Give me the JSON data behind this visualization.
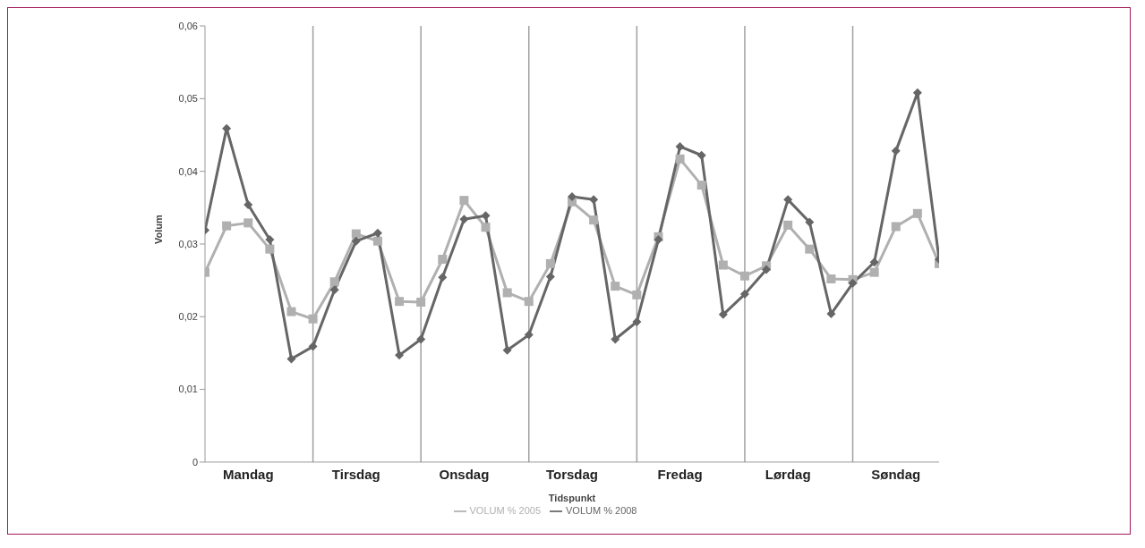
{
  "chart_data": {
    "type": "line",
    "xlabel": "Tidspunkt",
    "ylabel": "Volum",
    "categories": [
      null,
      null,
      "Mandag",
      null,
      null,
      null,
      null,
      "Tirsdag",
      null,
      null,
      null,
      null,
      "Onsdag",
      null,
      null,
      null,
      null,
      "Torsdag",
      null,
      null,
      null,
      null,
      "Fredag",
      null,
      null,
      null,
      null,
      "Lørdag",
      null,
      null,
      null,
      null,
      "Søndag",
      null,
      null
    ],
    "ylim": [
      0,
      0.06
    ],
    "yticks": [
      {
        "value": 0,
        "label": "0"
      },
      {
        "value": 0.01,
        "label": "0,01"
      },
      {
        "value": 0.02,
        "label": "0,02"
      },
      {
        "value": 0.03,
        "label": "0,03"
      },
      {
        "value": 0.04,
        "label": "0,04"
      },
      {
        "value": 0.05,
        "label": "0,05"
      },
      {
        "value": 0.06,
        "label": "0,06"
      }
    ],
    "grid": "x",
    "legend": "bottom",
    "line_style": "solid",
    "series": [
      {
        "name": "VOLUM % 2005",
        "color": "#b0b0b0",
        "marker": "square",
        "values": [
          0.0261,
          0.0325,
          0.0329,
          0.0293,
          0.0207,
          0.0197,
          0.0248,
          0.0314,
          0.0304,
          0.0221,
          0.022,
          0.0279,
          0.036,
          0.0323,
          0.0233,
          0.0221,
          0.0273,
          0.0358,
          0.0333,
          0.0242,
          0.023,
          0.031,
          0.0417,
          0.0381,
          0.0271,
          0.0256,
          0.027,
          0.0326,
          0.0293,
          0.0252,
          0.0251,
          0.0261,
          0.0324,
          0.0342,
          0.0273
        ]
      },
      {
        "name": "VOLUM % 2008",
        "color": "#666666",
        "marker": "diamond",
        "values": [
          0.0319,
          0.0459,
          0.0354,
          0.0306,
          0.0142,
          0.0159,
          0.0237,
          0.0304,
          0.0315,
          0.0147,
          0.0169,
          0.0254,
          0.0334,
          0.0339,
          0.0154,
          0.0175,
          0.0255,
          0.0365,
          0.0361,
          0.0169,
          0.0193,
          0.0306,
          0.0434,
          0.0422,
          0.0203,
          0.0231,
          0.0265,
          0.0361,
          0.033,
          0.0204,
          0.0246,
          0.0275,
          0.0428,
          0.0508,
          0.0279
        ]
      }
    ]
  }
}
